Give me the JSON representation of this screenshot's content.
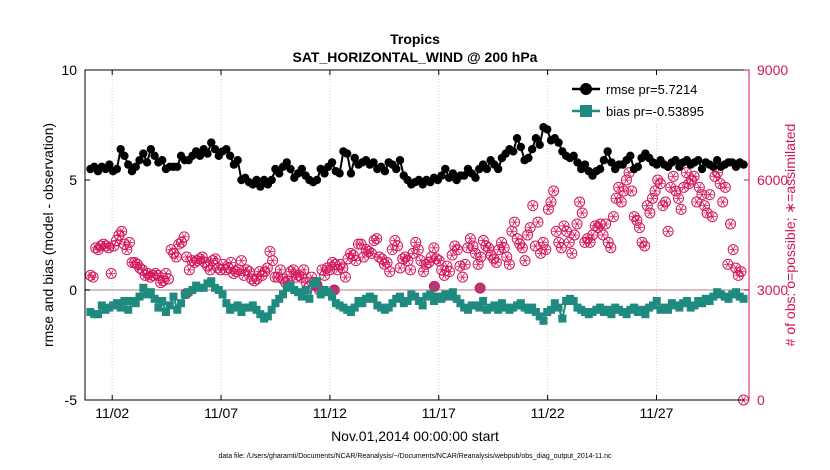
{
  "chart_data": {
    "type": "line",
    "title": "Tropics",
    "subtitle": "SAT_HORIZONTAL_WIND @ 200 hPa",
    "xlabel": "Nov.01,2014 00:00:00 start",
    "ylabel_left": "rmse and bias (model - observation)",
    "ylabel_right": "# of obs: o=possible; ∗=assimilated",
    "footer": "data file: /Users/gharamti/Documents/NCAR/Reanalysis/~/Documents/NCAR/Reanalysis/webpub/obs_diag_output_2014-11.nc",
    "xlim": [
      0.75,
      31.25
    ],
    "ylim_left": [
      -5,
      10
    ],
    "ylim_right": [
      0,
      9000
    ],
    "xticks": [
      2,
      7,
      12,
      17,
      22,
      27
    ],
    "xtick_labels": [
      "11/02",
      "11/07",
      "11/12",
      "11/17",
      "11/22",
      "11/27"
    ],
    "yticks_left": [
      -5,
      0,
      5,
      10
    ],
    "ytick_labels_left": [
      "-5",
      "0",
      "5",
      "10"
    ],
    "yticks_right": [
      0,
      3000,
      6000,
      9000
    ],
    "ytick_labels_right": [
      "0",
      "3000",
      "6000",
      "9000"
    ],
    "grid": "vertical dotted at x ticks",
    "legend_position": "top-right",
    "colors": {
      "rmse": "#000000",
      "bias": "#1f8a80",
      "obs": "#d4145a",
      "zero_line": "#c8a8b0"
    },
    "series": [
      {
        "name": "rmse pr=5.7214",
        "marker": "circle",
        "values": [
          5.5,
          5.6,
          5.4,
          5.6,
          5.5,
          5.7,
          5.4,
          5.5,
          6.4,
          6.1,
          5.7,
          5.4,
          5.6,
          5.9,
          6.2,
          5.8,
          6.4,
          6.1,
          5.8,
          5.9,
          5.5,
          5.6,
          5.6,
          5.6,
          6.1,
          5.9,
          5.9,
          6.1,
          6.3,
          6.1,
          6.4,
          6.2,
          6.7,
          6.4,
          6.1,
          6.3,
          6.4,
          6.1,
          5.7,
          5.9,
          5.0,
          5.1,
          4.9,
          4.8,
          5.0,
          4.7,
          5.0,
          4.8,
          5.0,
          5.5,
          5.3,
          5.6,
          5.8,
          5.5,
          5.1,
          5.3,
          5.5,
          5.2,
          5.0,
          4.9,
          5.0,
          5.5,
          5.3,
          5.6,
          5.8,
          5.4,
          5.3,
          6.3,
          6.2,
          5.3,
          6.0,
          5.7,
          5.8,
          5.9,
          5.7,
          5.8,
          5.5,
          5.6,
          5.4,
          5.8,
          5.7,
          5.5,
          5.9,
          5.2,
          5.0,
          4.8,
          4.9,
          5.0,
          4.8,
          5.0,
          4.9,
          5.1,
          5.0,
          5.2,
          5.5,
          5.1,
          5.3,
          5.0,
          5.2,
          5.2,
          5.5,
          5.3,
          5.1,
          5.5,
          5.7,
          5.5,
          5.9,
          5.7,
          5.5,
          6.0,
          6.2,
          6.4,
          6.3,
          6.9,
          6.5,
          5.9,
          6.0,
          6.4,
          6.9,
          6.6,
          7.4,
          7.3,
          6.8,
          6.9,
          6.7,
          6.3,
          6.1,
          6.0,
          6.1,
          5.8,
          5.5,
          5.7,
          5.4,
          5.2,
          5.4,
          5.5,
          5.9,
          6.3,
          5.8,
          5.5,
          5.7,
          5.7,
          5.9,
          6.1,
          5.5,
          5.6,
          6.0,
          6.2,
          6.0,
          5.8,
          5.7,
          5.9,
          5.7,
          5.6,
          5.8,
          5.9,
          5.6,
          5.8,
          5.9,
          5.7,
          5.8,
          5.9,
          5.5,
          5.8,
          5.7,
          5.6,
          5.9,
          5.6,
          5.7,
          5.8,
          5.8,
          5.6,
          5.8,
          5.7
        ]
      },
      {
        "name": "bias pr=-0.53895",
        "marker": "square",
        "values": [
          -1.0,
          -1.1,
          -1.1,
          -0.7,
          -0.9,
          -0.8,
          -0.7,
          -0.6,
          -0.8,
          -0.5,
          -0.9,
          -0.5,
          -0.6,
          -0.3,
          0.1,
          -0.2,
          -0.1,
          -0.4,
          -0.8,
          -0.5,
          -1.0,
          -0.7,
          -0.3,
          -0.9,
          -0.6,
          -0.2,
          -0.1,
          0.0,
          0.2,
          0.1,
          0.1,
          0.3,
          0.4,
          0.1,
          0.0,
          -0.2,
          -0.6,
          -0.9,
          -0.8,
          -0.7,
          -1.0,
          -0.8,
          -0.8,
          -0.7,
          -0.9,
          -1.1,
          -1.3,
          -1.2,
          -0.9,
          -0.6,
          -0.4,
          -0.2,
          0.1,
          0.2,
          0.0,
          -0.1,
          -0.3,
          0.0,
          -0.4,
          0.3,
          0.4,
          -0.2,
          0.0,
          -0.1,
          -0.3,
          -0.6,
          -0.7,
          -0.8,
          -0.9,
          -1.0,
          -0.8,
          -0.5,
          -0.6,
          -0.4,
          -0.3,
          -0.4,
          -0.7,
          -0.8,
          -0.9,
          -0.8,
          -0.6,
          -0.4,
          -0.3,
          -0.6,
          -0.5,
          -0.2,
          -0.3,
          -0.5,
          -0.7,
          -0.3,
          -0.2,
          -0.5,
          -0.3,
          -0.4,
          -0.2,
          -0.3,
          -0.1,
          -0.4,
          -0.6,
          -0.8,
          -0.9,
          -0.7,
          -0.7,
          -0.8,
          -0.5,
          -0.9,
          -0.8,
          -0.7,
          -0.9,
          -0.6,
          -0.8,
          -0.9,
          -0.8,
          -0.7,
          -0.6,
          -0.8,
          -0.9,
          -0.8,
          -1.0,
          -1.2,
          -1.4,
          -1.0,
          -0.9,
          -0.6,
          -0.8,
          -1.3,
          -0.5,
          -0.4,
          -0.5,
          -0.8,
          -0.9,
          -1.0,
          -1.1,
          -1.0,
          -0.9,
          -0.8,
          -1.0,
          -0.9,
          -1.1,
          -0.8,
          -0.9,
          -1.0,
          -1.1,
          -0.9,
          -0.8,
          -1.0,
          -0.9,
          -1.1,
          -0.8,
          -0.7,
          -0.5,
          -0.9,
          -0.8,
          -0.9,
          -0.6,
          -0.7,
          -0.8,
          -0.6,
          -0.5,
          -0.8,
          -0.7,
          -0.5,
          -0.6,
          -0.4,
          -0.5,
          -0.3,
          -0.1,
          -0.2,
          -0.3,
          -0.4,
          -0.2,
          -0.1,
          -0.3,
          -0.4
        ]
      },
      {
        "name": "# obs possible (o) / assimilated (*)",
        "axis": "right",
        "marker": "circle-star",
        "values": [
          3400,
          3350,
          4150,
          4100,
          4200,
          4250,
          4200,
          4150,
          3450,
          4200,
          4350,
          4500,
          4600,
          4250,
          4100,
          4300,
          3750,
          3750,
          3700,
          3600,
          3550,
          3400,
          3450,
          3350,
          3400,
          3450,
          3400,
          3200,
          3250,
          3450,
          3300,
          4100,
          4000,
          3900,
          4250,
          4300,
          4450,
          3900,
          3550,
          3800,
          3750,
          3800,
          3850,
          3900,
          3750,
          3650,
          3550,
          3800,
          3850,
          3600,
          3550,
          3700,
          3550,
          3600,
          3750,
          3450,
          3500,
          3550,
          3800,
          3400,
          3550,
          3500,
          3300,
          3250,
          3300,
          3500,
          3400,
          3500,
          3600,
          4050,
          3800,
          3350,
          3350,
          3550,
          3300,
          3200,
          3250,
          3500,
          3550,
          3350,
          3400,
          3350,
          3550,
          3200,
          3100,
          3350,
          3200,
          3100,
          3000,
          3550,
          3400,
          3600,
          3550,
          3750,
          3700,
          3550,
          3700,
          3600,
          3350,
          3850,
          4000,
          3950,
          3800,
          4250,
          4250,
          3900,
          4100,
          4050,
          4000,
          4350,
          4400,
          3900,
          3850,
          3700,
          3750,
          3500,
          4100,
          4350,
          4200,
          3600,
          3850,
          3900,
          3800,
          3550,
          4000,
          4300,
          4100,
          3800,
          3500,
          3700,
          3750,
          3900,
          4150,
          3850,
          3800,
          3550,
          3400,
          3650,
          3500,
          3950,
          4200,
          4100,
          3650,
          3350,
          3700,
          4150,
          4400,
          4200,
          4000,
          3700,
          3900,
          4350,
          4200,
          4150,
          3950,
          3850,
          3750,
          4100,
          4300,
          4150,
          3900,
          3700,
          4600,
          4850,
          4400,
          4250,
          4150,
          3800,
          4500,
          4700,
          5300,
          4200,
          4850,
          4000,
          4300,
          4100,
          5200,
          5400,
          5700,
          4600,
          4300,
          4150,
          4750,
          4600,
          4300,
          4000,
          4500,
          4800,
          5400,
          5100,
          4300,
          4400,
          4300,
          4500,
          4750,
          4700,
          4800,
          4500,
          4800,
          4300,
          4150,
          5000,
          5500,
          5800,
          5400,
          5700,
          6000,
          6200,
          5700,
          5000,
          4900,
          4700,
          4300,
          4200,
          5300,
          5100,
          5500,
          5700,
          6000,
          5900,
          5300,
          5400,
          4600,
          5800,
          6100,
          5700,
          5500,
          5200,
          5800,
          6200,
          5900,
          6000,
          6100,
          5400,
          5800,
          5600,
          5300,
          5100,
          5600,
          5000,
          6100,
          6200,
          5900,
          5400,
          5800,
          3700,
          4800,
          4100,
          3600,
          3400,
          3500,
          0
        ]
      }
    ],
    "annotation_points": {
      "assimilated_dots_x": [
        5.4,
        11.4,
        12.2,
        16.8,
        18.9
      ],
      "assimilated_dots_y": [
        2900,
        3150,
        3000,
        3100,
        3050
      ]
    }
  },
  "legend": {
    "rmse_label": "rmse pr=5.7214",
    "bias_label": "bias pr=-0.53895"
  }
}
